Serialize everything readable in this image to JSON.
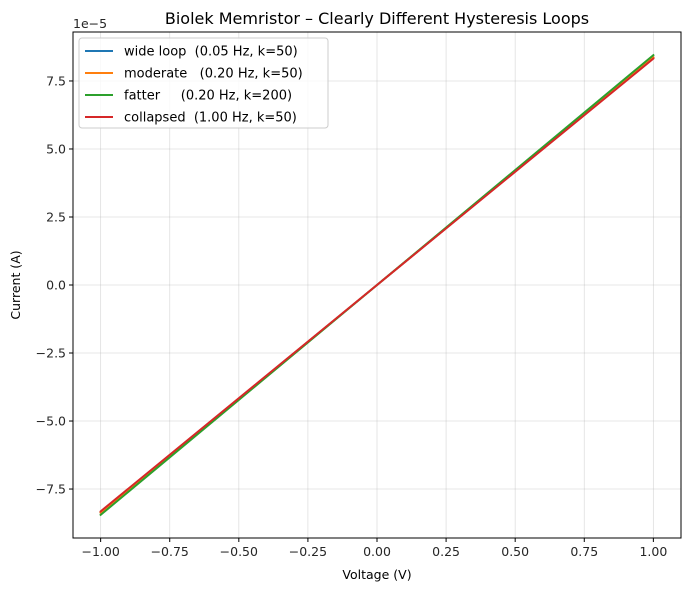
{
  "chart_data": {
    "type": "line",
    "title": "Biolek Memristor – Clearly Different Hysteresis Loops",
    "xlabel": "Voltage  (V)",
    "ylabel": "Current  (A)",
    "y_offset_text": "1e−5",
    "xlim": [
      -1.1,
      1.1
    ],
    "ylim": [
      -9.3,
      9.3
    ],
    "y_scale_note": "y tick values are in units of 1e-5 A",
    "xticks": [
      -1.0,
      -0.75,
      -0.5,
      -0.25,
      0.0,
      0.25,
      0.5,
      0.75,
      1.0
    ],
    "xtick_labels": [
      "−1.00",
      "−0.75",
      "−0.50",
      "−0.25",
      "0.00",
      "0.25",
      "0.50",
      "0.75",
      "1.00"
    ],
    "yticks": [
      -7.5,
      -5.0,
      -2.5,
      0.0,
      2.5,
      5.0,
      7.5
    ],
    "ytick_labels": [
      "−7.5",
      "−5.0",
      "−2.5",
      "0.0",
      "2.5",
      "5.0",
      "7.5"
    ],
    "grid": true,
    "legend_position": "top-left",
    "series": [
      {
        "name": "wide loop  (0.05 Hz, k=50)",
        "color": "#1f77b4",
        "x": [
          -1.0,
          0.0,
          1.0
        ],
        "y": [
          -8.37,
          0.0,
          8.37
        ]
      },
      {
        "name": "moderate   (0.20 Hz, k=50)",
        "color": "#ff7f0e",
        "x": [
          -1.0,
          0.0,
          1.0
        ],
        "y": [
          -8.37,
          0.0,
          8.37
        ]
      },
      {
        "name": "fatter     (0.20 Hz, k=200)",
        "color": "#2ca02c",
        "x": [
          -1.0,
          0.0,
          1.0
        ],
        "y": [
          -8.45,
          0.0,
          8.45
        ]
      },
      {
        "name": "collapsed  (1.00 Hz, k=50)",
        "color": "#d62728",
        "x": [
          -1.0,
          0.0,
          1.0
        ],
        "y": [
          -8.32,
          0.0,
          8.32
        ]
      }
    ]
  }
}
